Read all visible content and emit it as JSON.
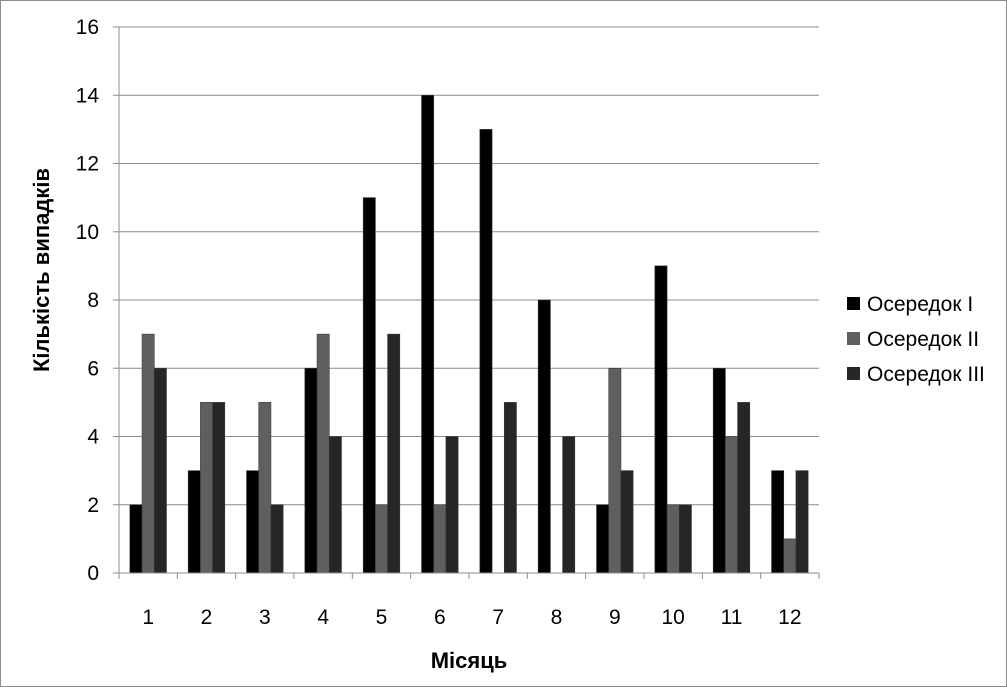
{
  "chart_data": {
    "type": "bar",
    "categories": [
      "1",
      "2",
      "3",
      "4",
      "5",
      "6",
      "7",
      "8",
      "9",
      "10",
      "11",
      "12"
    ],
    "series": [
      {
        "name": "Осередок I",
        "color": "#000000",
        "values": [
          2,
          3,
          3,
          6,
          11,
          14,
          13,
          8,
          2,
          9,
          6,
          3
        ]
      },
      {
        "name": "Осередок II",
        "color": "#5f5f5f",
        "values": [
          7,
          5,
          5,
          7,
          2,
          2,
          0,
          0,
          6,
          2,
          4,
          1
        ]
      },
      {
        "name": "Осередок III",
        "color": "#262626",
        "values": [
          6,
          5,
          2,
          4,
          7,
          4,
          5,
          4,
          3,
          2,
          5,
          3
        ]
      }
    ],
    "title": "",
    "xlabel": "Місяць",
    "ylabel": "Кількість випадків",
    "ylim": [
      0,
      16
    ],
    "yticks": [
      "0",
      "2",
      "4",
      "6",
      "8",
      "10",
      "12",
      "14",
      "16"
    ],
    "grid": true,
    "legend_position": "right"
  }
}
